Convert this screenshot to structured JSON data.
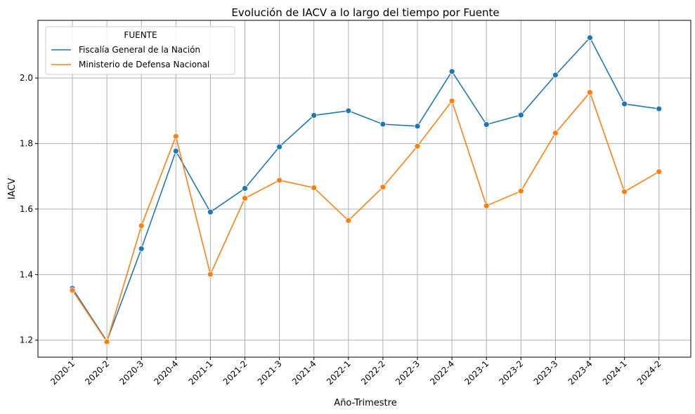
{
  "chart_data": {
    "type": "line",
    "title": "Evolución de IACV a lo largo del tiempo por Fuente",
    "xlabel": "Año-Trimestre",
    "ylabel": "IACV",
    "categories": [
      "2020-1",
      "2020-2",
      "2020-3",
      "2020-4",
      "2021-1",
      "2021-2",
      "2021-3",
      "2021-4",
      "2022-1",
      "2022-2",
      "2022-3",
      "2022-4",
      "2023-1",
      "2023-2",
      "2023-3",
      "2023-4",
      "2024-1",
      "2024-2"
    ],
    "yticks": [
      "1.2",
      "1.4",
      "1.6",
      "1.8",
      "2.0"
    ],
    "ylim": [
      1.148,
      2.176
    ],
    "grid": true,
    "legend_position": "top-left",
    "legend_title": "FUENTE",
    "series": [
      {
        "name": "Fiscalía General de la Nación",
        "color": "#1f77b4",
        "marker": "circle",
        "values": [
          1.358,
          1.197,
          1.479,
          1.777,
          1.591,
          1.663,
          1.79,
          1.886,
          1.9,
          1.859,
          1.853,
          2.02,
          1.858,
          1.887,
          2.009,
          2.123,
          1.921,
          1.906
        ]
      },
      {
        "name": "Ministerio de Defensa Nacional",
        "color": "#ff7f0e",
        "marker": "circle",
        "values": [
          1.352,
          1.195,
          1.549,
          1.822,
          1.401,
          1.633,
          1.688,
          1.665,
          1.565,
          1.667,
          1.792,
          1.93,
          1.61,
          1.655,
          1.832,
          1.956,
          1.653,
          1.714
        ]
      }
    ]
  }
}
